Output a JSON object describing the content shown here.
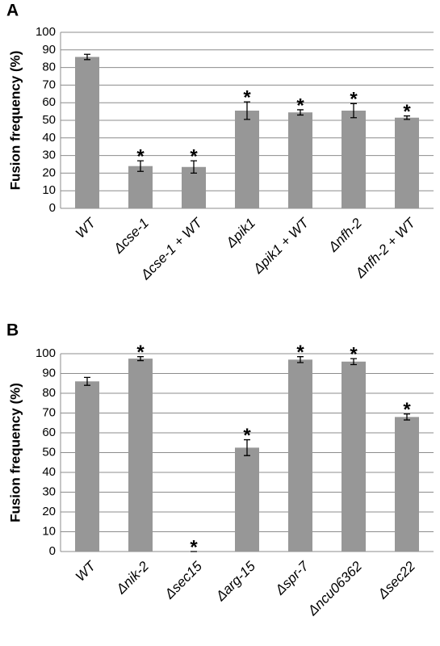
{
  "chart_data": [
    {
      "type": "bar",
      "panel_label": "A",
      "y_label": "Fusion frequency (%)",
      "categories": [
        "WT",
        "Δcse-1",
        "Δcse-1 + WT",
        "Δpik1",
        "Δpik1 + WT",
        "Δnfh-2",
        "Δnfh-2 + WT"
      ],
      "values": [
        86,
        24,
        23.5,
        55.5,
        54.5,
        55.5,
        51.5
      ],
      "errors": [
        1.5,
        3,
        3.5,
        5,
        1.5,
        4,
        1
      ],
      "annotations": [
        null,
        "*",
        "*",
        "*",
        "*",
        "*",
        "*"
      ],
      "color": "#979797",
      "ylim": [
        0,
        100
      ],
      "yticks": [
        0,
        10,
        20,
        30,
        40,
        50,
        60,
        70,
        80,
        90,
        100
      ],
      "grid": true
    },
    {
      "type": "bar",
      "panel_label": "B",
      "y_label": "Fusion frequency (%)",
      "categories": [
        "WT",
        "Δnik-2",
        "Δsec15",
        "Δarg-15",
        "Δspr-7",
        "Δncu06362",
        "Δsec22"
      ],
      "values": [
        86,
        97.5,
        0,
        52.5,
        97,
        96,
        68
      ],
      "errors": [
        2,
        1,
        0,
        4,
        1.5,
        1.5,
        1.5
      ],
      "annotations": [
        null,
        "*",
        "*",
        "*",
        "*",
        "*",
        "*"
      ],
      "color": "#979797",
      "ylim": [
        0,
        100
      ],
      "yticks": [
        0,
        10,
        20,
        30,
        40,
        50,
        60,
        70,
        80,
        90,
        100
      ],
      "grid": true
    }
  ]
}
